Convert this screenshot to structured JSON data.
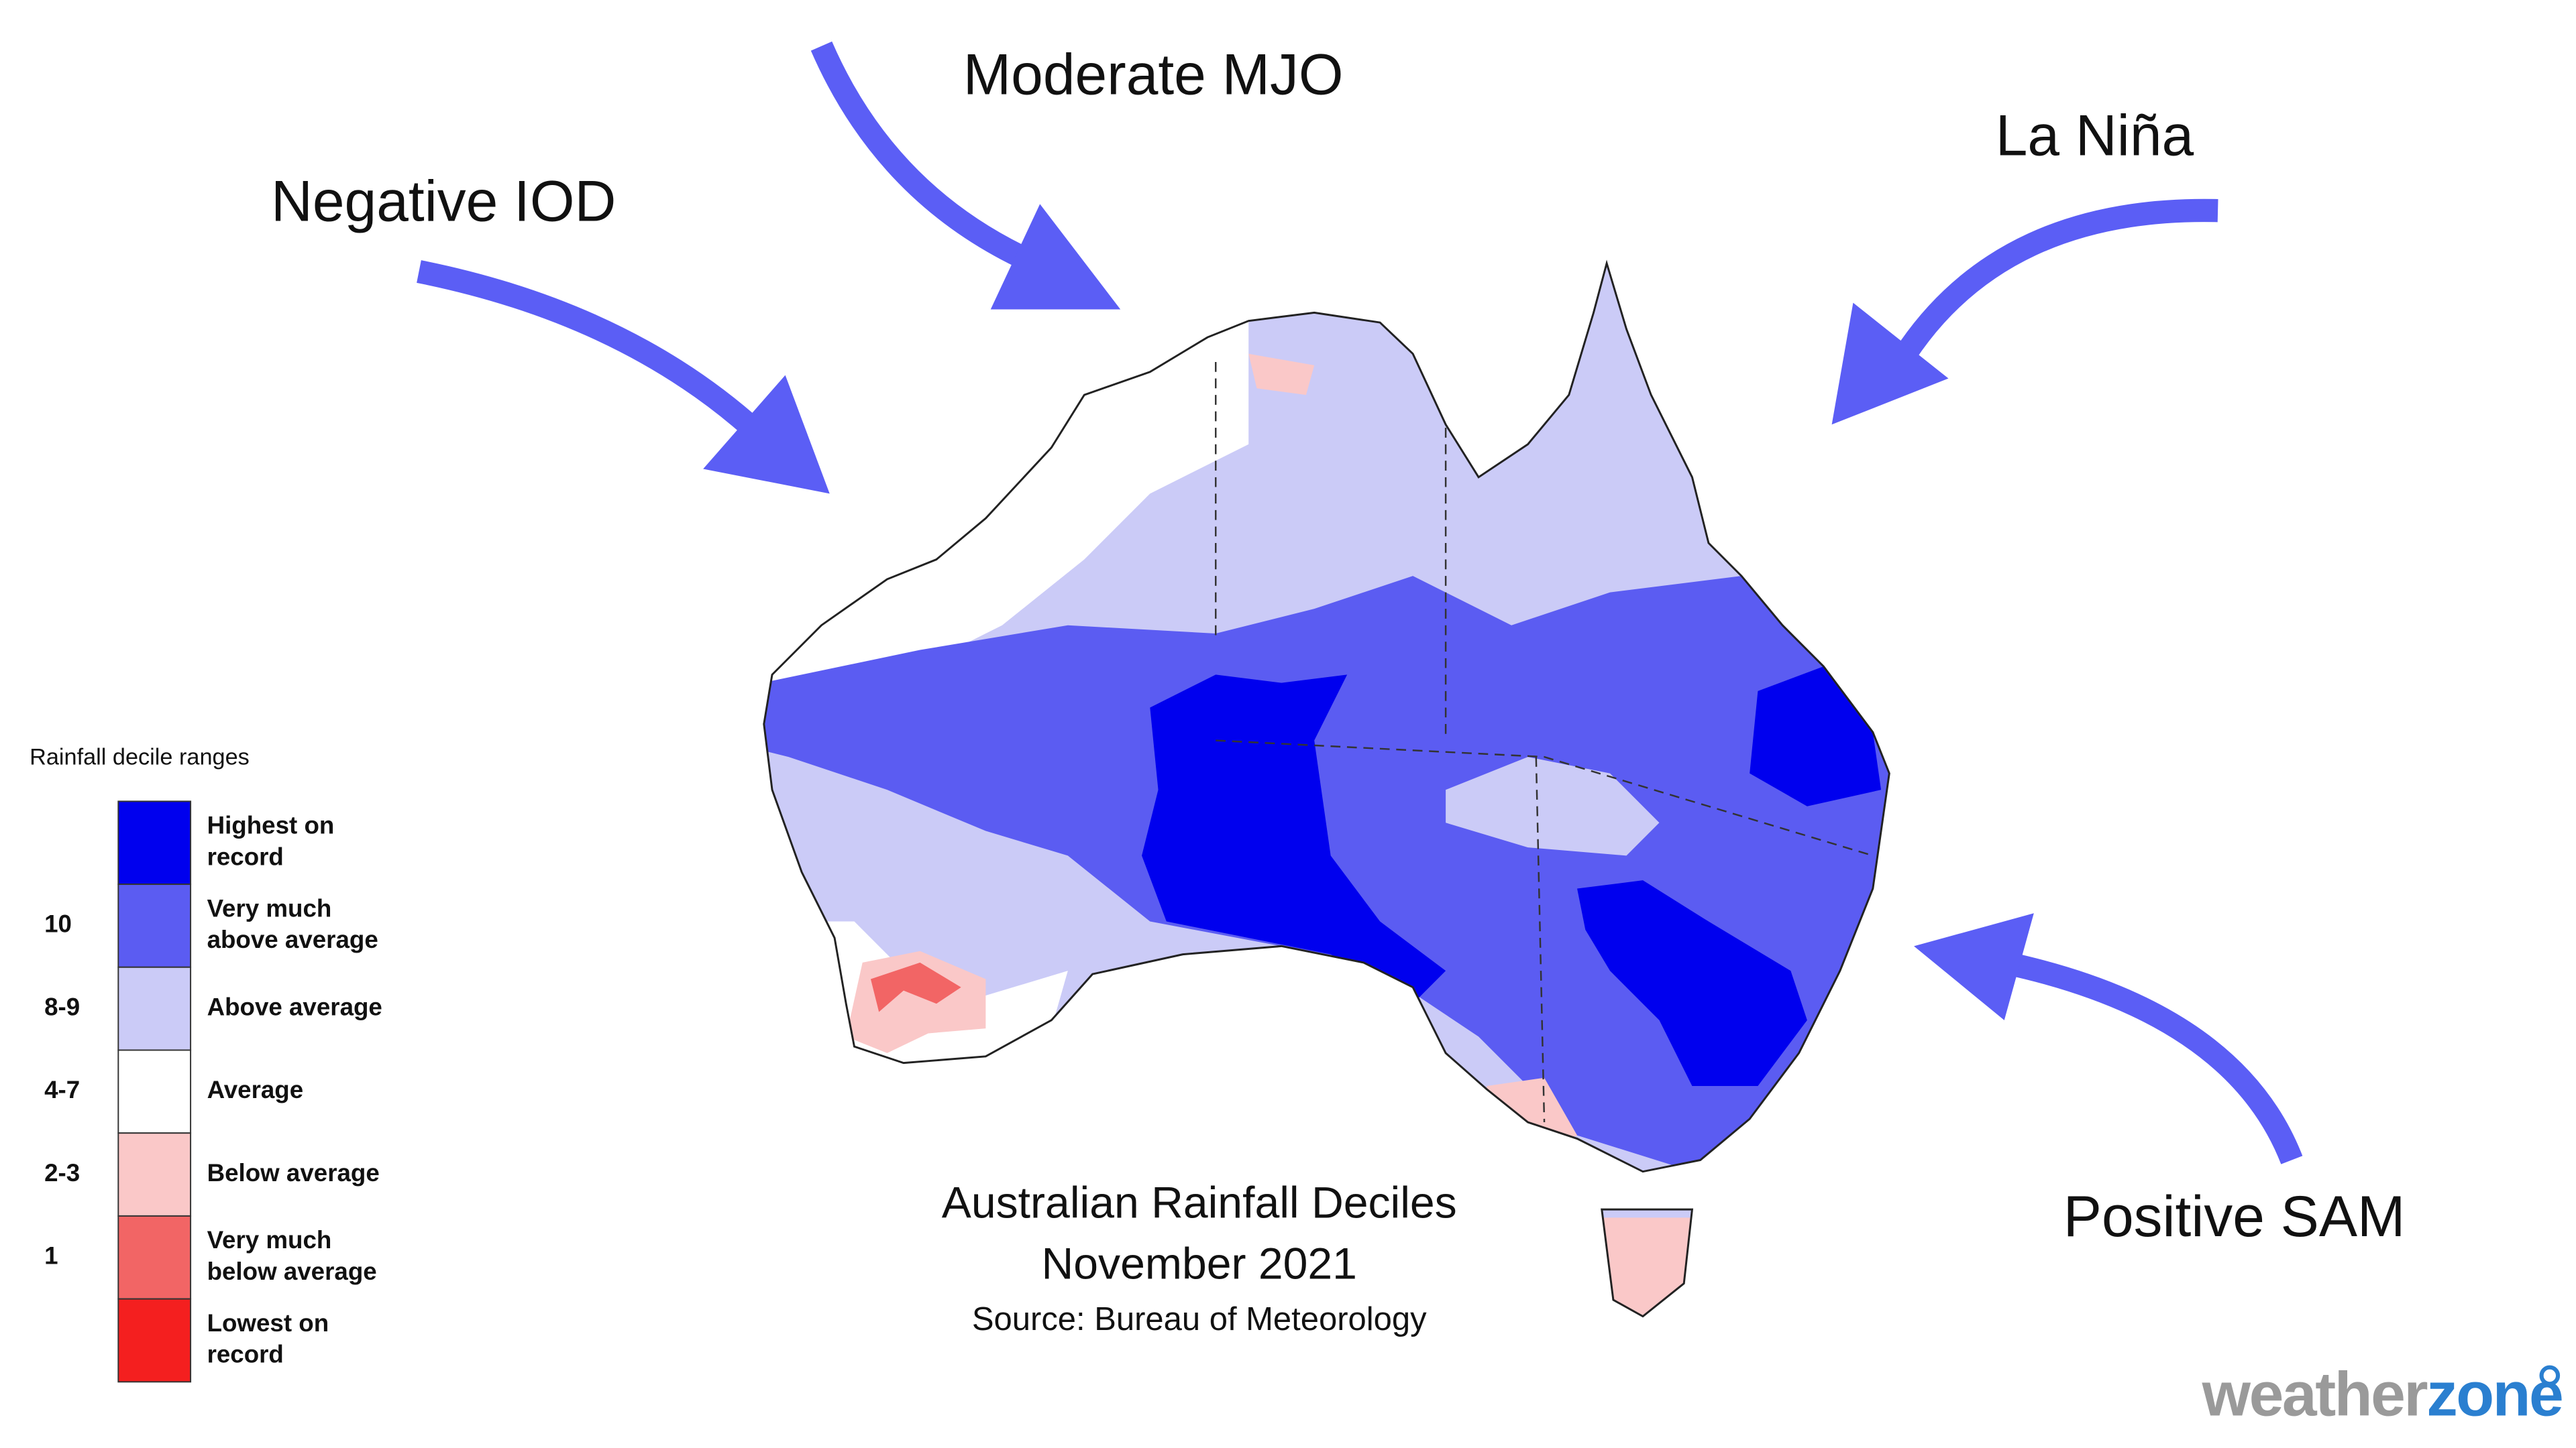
{
  "annotations": {
    "negative_iod": "Negative IOD",
    "moderate_mjo": "Moderate MJO",
    "la_nina": "La Niña",
    "positive_sam": "Positive SAM"
  },
  "caption": {
    "title": "Australian Rainfall Deciles",
    "date": "November 2021",
    "source": "Source: Bureau of Meteorology"
  },
  "legend": {
    "title": "Rainfall decile ranges",
    "items": [
      {
        "labels": [
          "Highest on",
          "record"
        ],
        "color": "#0000ee"
      },
      {
        "range": "10",
        "labels": [
          "Very much",
          "above average"
        ],
        "color": "#5b5cf2"
      },
      {
        "range": "8-9",
        "labels": [
          "Above average"
        ],
        "color": "#cbcbf7"
      },
      {
        "range": "4-7",
        "labels": [
          "Average"
        ],
        "color": "#ffffff"
      },
      {
        "range": "2-3",
        "labels": [
          "Below average"
        ],
        "color": "#fac8c8"
      },
      {
        "range": "1",
        "labels": [
          "Very much",
          "below average"
        ],
        "color": "#f26565"
      },
      {
        "labels": [
          "Lowest on",
          "record"
        ],
        "color": "#f41f1f"
      }
    ]
  },
  "logo": {
    "part1": "weather",
    "part2": "zone"
  }
}
